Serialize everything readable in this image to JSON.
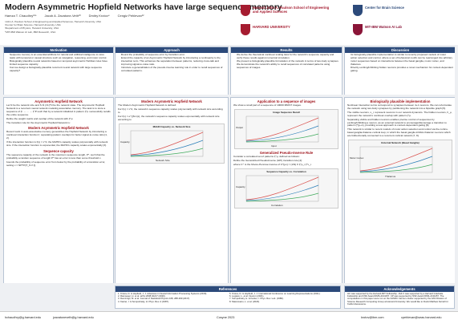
{
  "header": {
    "title": "Modern Asymmetric Hopfield Networks have large sequence memory",
    "authors": [
      "Hamza T. Chaudhry¹²*",
      "Jacob A. Zavatone-Veth²³",
      "Dmitry Krotov⁴",
      "Cengiz Pehlevan¹²"
    ],
    "affiliations": [
      "¹John A. Paulson School of Engineering and Applied Sciences, Harvard University, USA",
      "²Center for Brain Science, Harvard University, USA",
      "³Department of Physics, Harvard University, USA",
      "⁴MIT-IBM Watson AI Lab, IBM Research, USA"
    ],
    "logos": [
      "Harvard John A. Paulson School of Engineering and Applied Sciences",
      "Center for Brain Science",
      "HARVARD UNIVERSITY",
      "MIT-IBM Watson AI Lab"
    ]
  },
  "summary": [
    {
      "heading": "Motivation",
      "bullets": [
        "Sequence memory is an essential attribute for natural and artificial intelligence to store tasks with temporal or causal structure such as navigation, reasoning, and motor control.",
        "Biologically plausible neural networks based on temporal asymmetric Hebbian rules have limited sequence capacity.",
        "Can we design a biologically-plausible recurrent neural network with large sequence capacity?"
      ]
    },
    {
      "heading": "Approach",
      "bullets": [
        "Bound the probability of sequence error by transition error.",
        "Extend the capacity of an Asymmetric Hopfield Network by introducing a nonlinearity to the interaction term. This enhances the separation between patterns, reducing cross-talk and improving signal-to-noise ratio.",
        "Introduce a generalization of the pseudo-inverse learning rule in order to recall sequences of correlated patterns."
      ]
    },
    {
      "heading": "Results",
      "bullets": [
        "We derive the theoretical nonlinear scaling laws for the network's sequence capacity and verify these results against numerical simulation.",
        "We present a biologically-plausible formulation of the network in terms of two-body synapses.",
        "We demonstrate the network's ability to recall sequences of correlated patterns using sequences of images."
      ]
    },
    {
      "heading": "Discussion",
      "bullets": [
        "Its biologically-plausible implementation is similar to recently proposed models of motor action selection and control, where a set of behavioral motifs can be rearranged into arbitrary motor sequences based on interactions between the basal ganglia, motor cortex, and thalamus.",
        "Directly exciting/inhibiting hidden neurons provides a novel mechanism for context-dependent gating."
      ]
    }
  ],
  "columns": [
    [
      {
        "heading": "Asymmetric Hopfield Network",
        "text": [
          "Let N be the network size and S ∈ {±1}^N be the network state. The Asymmetric Hopfield Network is a recurrent neural network modeling associative memory. The task is to store a sequence of ξ¹ → … → ξ^P such that by a network initialized in pattern ξ^μ successfully recalls the entire sequence.",
          "Define the weight matrix and overlap of the network with ξ^μ:",
          "The transition rule for the Asymmetric Hopfield Network is:"
        ]
      },
      {
        "heading": "Modern Asymmetric Hopfield Network",
        "text": [
          "Recent work in auto-associative memory generalizes the Hopfield Network by introducing a nonlinear interaction function f, separating pattern overlaps for better signal-to-noise ratio [1, 2].",
          "If the interaction function is f(x) = x^d, the MAHN's capacity scales polynomially with network size. If the interaction function is exponential, the MAHN's capacity scales exponentially [3]."
        ]
      },
      {
        "heading": "Sequence capacity",
        "text": [
          "The sequence capacity of the network is the maximum sequence length, P*, such that the probability a random sequence of length P* has an error is less than some threshold c.",
          "bounds the probability of sequence error from below by the probability of a transition error, setting c = NP*Pr[T_N ≠ ξ]."
        ]
      }
    ],
    [
      {
        "heading": "Modern Asymmetric Hopfield Network",
        "text": [
          "The Modern Asymmetric Hopfield Network is defined:",
          "For f(x) = x^d, the network's sequence capacity scales polynomially with network size according to",
          "For f(x) = e^{(N-1)x}, the network's sequence capacity scales exponentially with network size according to"
        ],
        "figure": [
          "MAHN Capacity vs. Network Size",
          "Network Size",
          "Capacity"
        ]
      }
    ],
    [
      {
        "heading": "Application to a sequence of images",
        "text": [
          "We show a small part of a sequence of 10000 MNIST images."
        ],
        "figure": [
          "Image Sequence Recall",
          "Input",
          "Output"
        ]
      },
      {
        "heading": "Generalized Pseudo-Inverse Rule",
        "text": [
          "Consider a correlated set of patterns ξ^μ, defined as follows:",
          "Define the Generalized Pseudoinverse (GPI) transition rule [4]:",
          "where C⁺ is the Moore-Penrose inverse of C^{μν} = (1/N) Σ ξ^μ_i ξ^ν_i."
        ],
        "figure": [
          "Sequence Capacity vs. Correlation",
          "Correlation",
          "Capacity"
        ]
      }
    ],
    [
      {
        "heading": "Biologically plausible implementation",
        "text": [
          "Nonlinear interaction terms correspond to synapses between 4+1 neurons. We can reformulate the network using two-body synapses by partitioning the network into a bipartite graph [5].",
          "The visible neurons, s_i, represent neurons in our network dynamics. The hidden neurons, h_μ, represent the network's nonlinear overlap with pattern ξ^μ.",
          "Separating visible and hidden neurons enables precise control of sequences by exciting/inhibiting a neuron, as an external network to encourage/discourage a transition to pattern ξ^{μ+1}, providing a new approach to context-dependent gating [6].",
          "This network is similar to recent models of motor action selection and control via the cortico-basal ganglia-thalamo-cortical loop, in which the basal ganglia inhibits thalamic neurons which are bidirectionally connected to a recurrent cortical network [7, 8]."
        ],
        "figure": [
          "External Network (Basal Ganglia)",
          "Thalamus",
          "Motor Cortex"
        ]
      }
    ]
  ],
  "references": {
    "heading": "References",
    "items": [
      "1. Krotov, D. & Hopfield, J. J. Advances in Neural Information Processing Systems (2016).",
      "2. Ramsauer, H. et al. arXiv:2008.02217 (2020).",
      "3. Demircigil, M. et al. Journal of Statistical Physics 168, 288-299 (2017).",
      "4. Kanter, I. & Sompolinsky, H. Phys. Rev. A (1987).",
      "5. Krotov, D. & Hopfield, J. J. International Conference on Learning Representations (2021).",
      "6. Logiaco, L. et al. Neuron (2021).",
      "7. Sompolinsky, H. & Kanter, I. Phys. Rev. Lett. (1986).",
      "8. Mascuiuaru, L. et al. (2023)."
    ]
  },
  "acknowledgements": {
    "heading": "Acknowledgements",
    "text": "HC was supported by the Harvard-MIT Fellowship. JAZ-V was supported by a Harvard Graduate Fellowship and NSF Award DMS-2134157. CP was supported by NSF Award DMS-2134157. The computations in this paper were run on the FASRC Cannon cluster supported by the FAS Division of Science Research Computing Group at Harvard University. We would like to thank Matthew Farrell for fruitful discussions."
  },
  "footer": {
    "left": [
      "hchaudhry@g.harvard.edu",
      "jzavatoneveth@g.harvard.edu"
    ],
    "center": "Cosyne 2023",
    "right": [
      "krotov@ibm.com",
      "cpehlevan@seas.harvard.edu"
    ]
  }
}
